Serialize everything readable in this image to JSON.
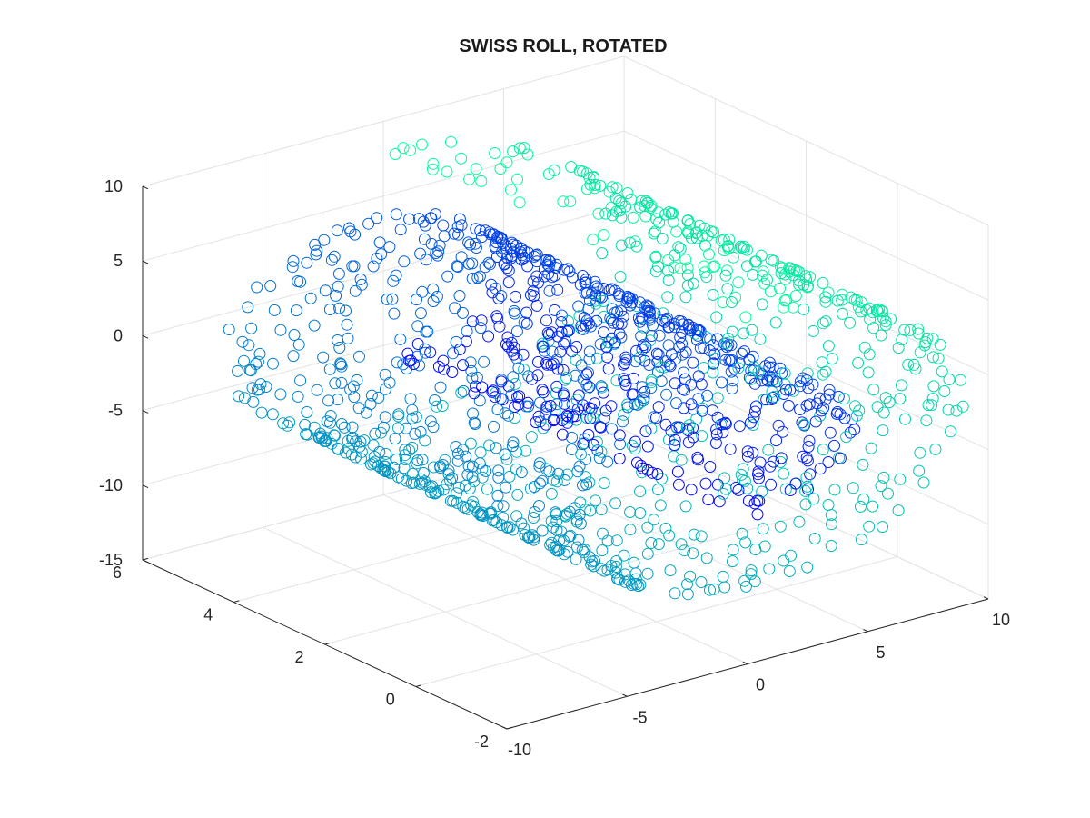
{
  "chart_data": {
    "type": "scatter",
    "title": "SWISS ROLL, ROTATED",
    "xlabel": "",
    "ylabel": "",
    "zlabel": "",
    "xlim": [
      -10,
      10
    ],
    "ylim": [
      -2,
      6
    ],
    "zlim": [
      -15,
      10
    ],
    "x_ticks": [
      "-10",
      "-5",
      "0",
      "5",
      "10"
    ],
    "y_ticks": [
      "-2",
      "0",
      "2",
      "4",
      "6"
    ],
    "z_ticks": [
      "-15",
      "-10",
      "-5",
      "0",
      "5",
      "10"
    ],
    "grid": true,
    "marker": "circle",
    "colormap": [
      "#0000ff",
      "#00ff99"
    ],
    "point_count": 1500,
    "series": [
      {
        "description_of_shape": "",
        "spiral_parameter_range": [
          4.71,
          14.14
        ],
        "width_range": [
          -2,
          6
        ]
      }
    ]
  }
}
